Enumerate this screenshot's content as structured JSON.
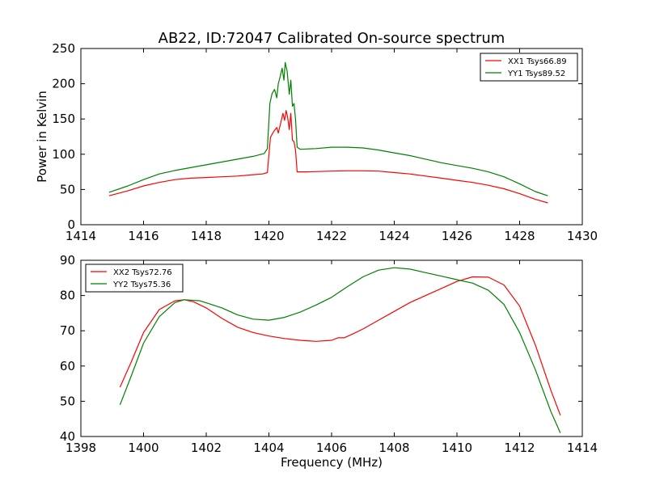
{
  "figure": {
    "title": "AB22, ID:72047 Calibrated On-source spectrum"
  },
  "colors": {
    "red": "#ff0000",
    "green": "#008000",
    "axis": "#000000",
    "background": "#ffffff"
  },
  "chart_data": [
    {
      "type": "line",
      "title": "AB22, ID:72047 Calibrated On-source spectrum",
      "xlabel": "",
      "ylabel": "Power in Kelvin",
      "xlim": [
        1414,
        1430
      ],
      "ylim": [
        0,
        250
      ],
      "xticks": [
        1414,
        1416,
        1418,
        1420,
        1422,
        1424,
        1426,
        1428,
        1430
      ],
      "yticks": [
        0,
        50,
        100,
        150,
        200,
        250
      ],
      "grid": false,
      "legend_position": "top-right",
      "series": [
        {
          "name": "XX1 Tsys66.89",
          "color": "#ff0000",
          "points": [
            [
              1414.9,
              41
            ],
            [
              1415.5,
              48
            ],
            [
              1416,
              55
            ],
            [
              1416.5,
              60
            ],
            [
              1417,
              64
            ],
            [
              1417.5,
              66
            ],
            [
              1418,
              67
            ],
            [
              1418.5,
              68
            ],
            [
              1419,
              69
            ],
            [
              1419.5,
              71
            ],
            [
              1419.8,
              72
            ],
            [
              1419.95,
              74
            ],
            [
              1420.05,
              124
            ],
            [
              1420.15,
              132
            ],
            [
              1420.25,
              138
            ],
            [
              1420.3,
              130
            ],
            [
              1420.38,
              145
            ],
            [
              1420.45,
              158
            ],
            [
              1420.5,
              148
            ],
            [
              1420.55,
              162
            ],
            [
              1420.6,
              152
            ],
            [
              1420.65,
              135
            ],
            [
              1420.7,
              158
            ],
            [
              1420.75,
              120
            ],
            [
              1420.8,
              118
            ],
            [
              1420.85,
              106
            ],
            [
              1420.9,
              75
            ],
            [
              1421.2,
              75
            ],
            [
              1422,
              76
            ],
            [
              1422.5,
              76.5
            ],
            [
              1423,
              76.5
            ],
            [
              1423.5,
              76
            ],
            [
              1424,
              74
            ],
            [
              1424.5,
              72
            ],
            [
              1425,
              69
            ],
            [
              1425.5,
              66
            ],
            [
              1426,
              63
            ],
            [
              1426.5,
              60
            ],
            [
              1427,
              56
            ],
            [
              1427.5,
              51
            ],
            [
              1428,
              44
            ],
            [
              1428.5,
              36
            ],
            [
              1428.9,
              31
            ]
          ]
        },
        {
          "name": "YY1 Tsys89.52",
          "color": "#008000",
          "points": [
            [
              1414.9,
              46
            ],
            [
              1415.5,
              55
            ],
            [
              1416,
              64
            ],
            [
              1416.5,
              72
            ],
            [
              1417,
              77
            ],
            [
              1417.5,
              81
            ],
            [
              1418,
              85
            ],
            [
              1418.5,
              89
            ],
            [
              1419,
              93
            ],
            [
              1419.5,
              97
            ],
            [
              1419.85,
              101
            ],
            [
              1419.95,
              108
            ],
            [
              1420.03,
              172
            ],
            [
              1420.1,
              186
            ],
            [
              1420.18,
              192
            ],
            [
              1420.25,
              180
            ],
            [
              1420.3,
              200
            ],
            [
              1420.36,
              210
            ],
            [
              1420.42,
              222
            ],
            [
              1420.48,
              205
            ],
            [
              1420.52,
              230
            ],
            [
              1420.58,
              218
            ],
            [
              1420.65,
              185
            ],
            [
              1420.7,
              205
            ],
            [
              1420.75,
              168
            ],
            [
              1420.8,
              172
            ],
            [
              1420.85,
              150
            ],
            [
              1420.9,
              110
            ],
            [
              1421,
              107
            ],
            [
              1421.5,
              108
            ],
            [
              1422,
              110
            ],
            [
              1422.5,
              110
            ],
            [
              1423,
              109
            ],
            [
              1423.5,
              106
            ],
            [
              1424,
              102
            ],
            [
              1424.5,
              98
            ],
            [
              1425,
              93
            ],
            [
              1425.5,
              88
            ],
            [
              1426,
              84
            ],
            [
              1426.5,
              80
            ],
            [
              1427,
              75
            ],
            [
              1427.5,
              68
            ],
            [
              1428,
              58
            ],
            [
              1428.5,
              47
            ],
            [
              1428.9,
              41
            ]
          ]
        }
      ]
    },
    {
      "type": "line",
      "title": "",
      "xlabel": "Frequency (MHz)",
      "ylabel": "",
      "xlim": [
        1398,
        1414
      ],
      "ylim": [
        40,
        90
      ],
      "xticks": [
        1398,
        1400,
        1402,
        1404,
        1406,
        1408,
        1410,
        1412,
        1414
      ],
      "yticks": [
        40,
        50,
        60,
        70,
        80,
        90
      ],
      "grid": false,
      "legend_position": "top-left",
      "series": [
        {
          "name": "XX2 Tsys72.76",
          "color": "#ff0000",
          "points": [
            [
              1399.25,
              54
            ],
            [
              1399.6,
              61
            ],
            [
              1400,
              69.5
            ],
            [
              1400.5,
              76
            ],
            [
              1401,
              78.5
            ],
            [
              1401.3,
              78.8
            ],
            [
              1401.6,
              78.2
            ],
            [
              1402,
              76.5
            ],
            [
              1402.5,
              73.5
            ],
            [
              1403,
              71
            ],
            [
              1403.5,
              69.5
            ],
            [
              1404,
              68.5
            ],
            [
              1404.5,
              67.8
            ],
            [
              1405,
              67.3
            ],
            [
              1405.5,
              67
            ],
            [
              1406,
              67.3
            ],
            [
              1406.2,
              68
            ],
            [
              1406.4,
              68
            ],
            [
              1406.7,
              69.2
            ],
            [
              1407,
              70.5
            ],
            [
              1407.5,
              73
            ],
            [
              1408,
              75.5
            ],
            [
              1408.5,
              78
            ],
            [
              1409,
              80
            ],
            [
              1409.5,
              82
            ],
            [
              1410,
              84
            ],
            [
              1410.5,
              85.3
            ],
            [
              1411,
              85.2
            ],
            [
              1411.5,
              83
            ],
            [
              1412,
              77
            ],
            [
              1412.5,
              66
            ],
            [
              1413,
              53
            ],
            [
              1413.3,
              46
            ]
          ]
        },
        {
          "name": "YY2 Tsys75.36",
          "color": "#008000",
          "points": [
            [
              1399.25,
              49
            ],
            [
              1399.6,
              57
            ],
            [
              1400,
              66.5
            ],
            [
              1400.5,
              74
            ],
            [
              1401,
              78
            ],
            [
              1401.3,
              78.8
            ],
            [
              1401.8,
              78.5
            ],
            [
              1402.5,
              76.5
            ],
            [
              1403,
              74.5
            ],
            [
              1403.5,
              73.3
            ],
            [
              1404,
              73
            ],
            [
              1404.5,
              73.8
            ],
            [
              1405,
              75.3
            ],
            [
              1405.5,
              77.3
            ],
            [
              1406,
              79.5
            ],
            [
              1406.5,
              82.5
            ],
            [
              1407,
              85.3
            ],
            [
              1407.5,
              87.2
            ],
            [
              1408,
              87.9
            ],
            [
              1408.5,
              87.5
            ],
            [
              1409,
              86.5
            ],
            [
              1409.5,
              85.5
            ],
            [
              1410,
              84.5
            ],
            [
              1410.5,
              83.5
            ],
            [
              1411,
              81.5
            ],
            [
              1411.5,
              77.5
            ],
            [
              1412,
              69.5
            ],
            [
              1412.5,
              59
            ],
            [
              1413,
              47
            ],
            [
              1413.3,
              41
            ]
          ]
        }
      ]
    }
  ]
}
